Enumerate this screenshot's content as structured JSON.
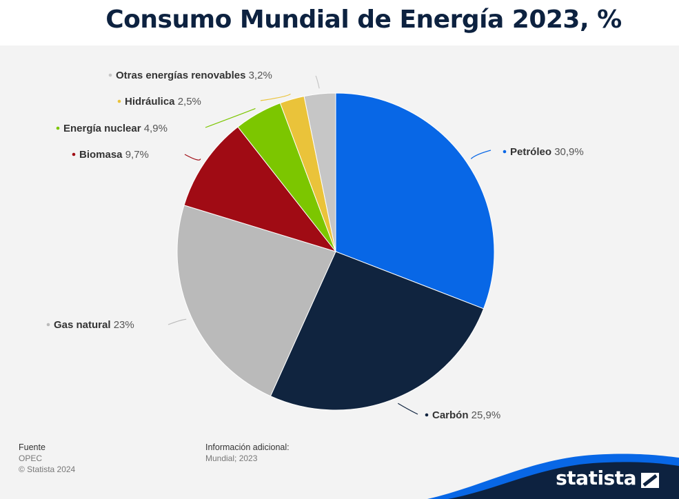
{
  "title": "Consumo Mundial de Energía 2023, %",
  "chart_data": {
    "type": "pie",
    "title": "Consumo Mundial de Energía 2023, %",
    "slices": [
      {
        "name": "Petróleo",
        "value": 30.9,
        "label": "30,9%",
        "color": "#0867e6"
      },
      {
        "name": "Carbón",
        "value": 25.9,
        "label": "25,9%",
        "color": "#10243f"
      },
      {
        "name": "Gas natural",
        "value": 23,
        "label": "23%",
        "color": "#bababa"
      },
      {
        "name": "Biomasa",
        "value": 9.7,
        "label": "9,7%",
        "color": "#a00b14"
      },
      {
        "name": "Energía nuclear",
        "value": 4.9,
        "label": "4,9%",
        "color": "#7cc600"
      },
      {
        "name": "Hidráulica",
        "value": 2.5,
        "label": "2,5%",
        "color": "#eac33a"
      },
      {
        "name": "Otras energías renovables",
        "value": 3.2,
        "label": "3,2%",
        "color": "#c6c6c6"
      }
    ]
  },
  "footer": {
    "source_heading": "Fuente",
    "source": "OPEC",
    "copyright": "© Statista 2024",
    "info_heading": "Información adicional:",
    "info": "Mundial; 2023"
  },
  "brand": {
    "name": "statista",
    "accent": "#0867e6",
    "dark": "#0d2240"
  }
}
